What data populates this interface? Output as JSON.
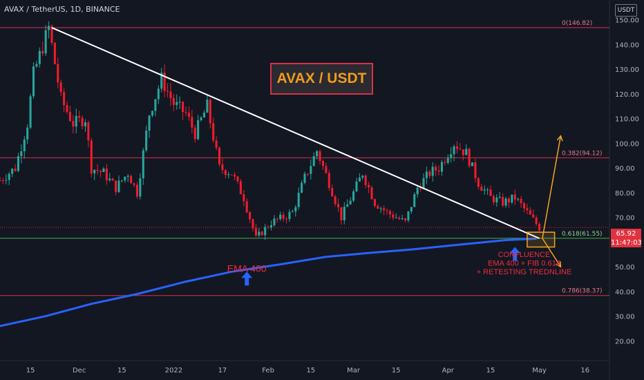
{
  "header": {
    "symbol_line": "AVAX / TetherUS, 1D, BINANCE"
  },
  "title_box": "AVAX / USDT",
  "quote_currency": "USDT",
  "last_price": "65.92",
  "countdown": "11:47:03",
  "colors": {
    "background": "#131722",
    "up": "#26a69a",
    "down": "#ef1c2c",
    "ema": "#2962ff",
    "trendline": "#ffffff",
    "fib_red": "#d8324a",
    "fib_green": "#4caf50",
    "arrow": "#f5a623"
  },
  "chart_data": {
    "type": "candlestick",
    "title": "AVAX / USDT",
    "y_axis": {
      "min": 12,
      "max": 158,
      "ticks": [
        20,
        30,
        40,
        50,
        60,
        70,
        80,
        90,
        100,
        110,
        120,
        130,
        140,
        150
      ],
      "tick_labels": [
        "20.00",
        "30.00",
        "40.00",
        "50.00",
        "60.00",
        "70.00",
        "80.00",
        "90.00",
        "100.00",
        "110.00",
        "120.00",
        "130.00",
        "140.00",
        "150.00"
      ]
    },
    "x_axis": {
      "tick_labels": [
        "15",
        "Dec",
        "15",
        "2022",
        "17",
        "Feb",
        "15",
        "Mar",
        "15",
        "Apr",
        "15",
        "May",
        "16"
      ],
      "tick_dates": [
        "2021-11-15",
        "2021-12-01",
        "2021-12-15",
        "2022-01-01",
        "2022-01-17",
        "2022-02-01",
        "2022-02-15",
        "2022-03-01",
        "2022-03-15",
        "2022-04-01",
        "2022-04-15",
        "2022-05-01",
        "2022-05-16"
      ],
      "start": "2021-11-05",
      "end": "2022-05-24"
    },
    "price_path": [
      [
        "2021-11-05",
        85
      ],
      [
        "2021-11-10",
        90
      ],
      [
        "2021-11-14",
        108
      ],
      [
        "2021-11-16",
        128
      ],
      [
        "2021-11-21",
        146.8
      ],
      [
        "2021-11-25",
        118
      ],
      [
        "2021-11-29",
        108
      ],
      [
        "2021-12-03",
        110
      ],
      [
        "2021-12-05",
        90
      ],
      [
        "2021-12-09",
        88
      ],
      [
        "2021-12-13",
        82
      ],
      [
        "2021-12-17",
        88
      ],
      [
        "2021-12-20",
        80
      ],
      [
        "2021-12-24",
        112
      ],
      [
        "2021-12-28",
        126
      ],
      [
        "2022-01-01",
        116
      ],
      [
        "2022-01-05",
        112
      ],
      [
        "2022-01-08",
        104
      ],
      [
        "2022-01-12",
        115
      ],
      [
        "2022-01-16",
        90
      ],
      [
        "2022-01-20",
        88
      ],
      [
        "2022-01-24",
        78
      ],
      [
        "2022-01-28",
        61.5
      ],
      [
        "2022-02-02",
        68
      ],
      [
        "2022-02-06",
        70
      ],
      [
        "2022-02-09",
        72
      ],
      [
        "2022-02-13",
        86
      ],
      [
        "2022-02-17",
        97
      ],
      [
        "2022-02-21",
        84
      ],
      [
        "2022-02-25",
        70
      ],
      [
        "2022-03-01",
        80
      ],
      [
        "2022-03-04",
        88
      ],
      [
        "2022-03-08",
        76
      ],
      [
        "2022-03-12",
        72
      ],
      [
        "2022-03-18",
        68
      ],
      [
        "2022-03-22",
        82
      ],
      [
        "2022-03-26",
        88
      ],
      [
        "2022-03-29",
        90
      ],
      [
        "2022-04-03",
        100
      ],
      [
        "2022-04-07",
        96
      ],
      [
        "2022-04-11",
        84
      ],
      [
        "2022-04-15",
        78
      ],
      [
        "2022-04-19",
        76
      ],
      [
        "2022-04-23",
        78
      ],
      [
        "2022-04-27",
        72
      ],
      [
        "2022-05-01",
        65.92
      ]
    ],
    "ema_400": [
      [
        "2021-11-05",
        26
      ],
      [
        "2021-11-20",
        30
      ],
      [
        "2021-12-05",
        35
      ],
      [
        "2021-12-20",
        39
      ],
      [
        "2022-01-05",
        44
      ],
      [
        "2022-01-20",
        48
      ],
      [
        "2022-02-05",
        51
      ],
      [
        "2022-02-20",
        54
      ],
      [
        "2022-03-05",
        55.5
      ],
      [
        "2022-03-20",
        57
      ],
      [
        "2022-04-05",
        59
      ],
      [
        "2022-04-20",
        60.8
      ],
      [
        "2022-04-30",
        61.4
      ]
    ],
    "trendline": [
      [
        "2021-11-22",
        146.8
      ],
      [
        "2022-05-01",
        61.5
      ]
    ],
    "fib_levels": [
      {
        "label": "0(146.82)",
        "value": 146.82,
        "color": "#d8324a"
      },
      {
        "label": "0.382(94.12)",
        "value": 94.12,
        "color": "#d8324a"
      },
      {
        "label": "0.618(61.55)",
        "value": 61.55,
        "color": "#4caf50"
      },
      {
        "label": "0.786(38.37)",
        "value": 38.37,
        "color": "#d8324a"
      }
    ],
    "annotations": [
      {
        "text": "EMA 400",
        "date": "2022-01-25",
        "value": 48
      },
      {
        "text": "CONFLUENCE",
        "date": "2022-04-26",
        "value": 54
      },
      {
        "text": "EMA 400 + FIB 0.618",
        "date": "2022-04-26",
        "value": 50.5
      },
      {
        "text": "+ RETESTING TREDNLINE",
        "date": "2022-04-26",
        "value": 47
      }
    ],
    "scenario_arrows": [
      {
        "from": [
          "2022-05-02",
          61.5
        ],
        "to": [
          "2022-05-08",
          103
        ],
        "direction": "up"
      },
      {
        "from": [
          "2022-05-02",
          61.5
        ],
        "to": [
          "2022-05-08",
          50
        ],
        "direction": "down"
      }
    ],
    "zone": {
      "from": "2022-04-27",
      "to": "2022-05-06",
      "low": 58,
      "high": 64
    },
    "blue_markers": [
      {
        "date": "2022-01-25",
        "value": 48
      },
      {
        "date": "2022-04-23",
        "value": 58
      }
    ]
  }
}
